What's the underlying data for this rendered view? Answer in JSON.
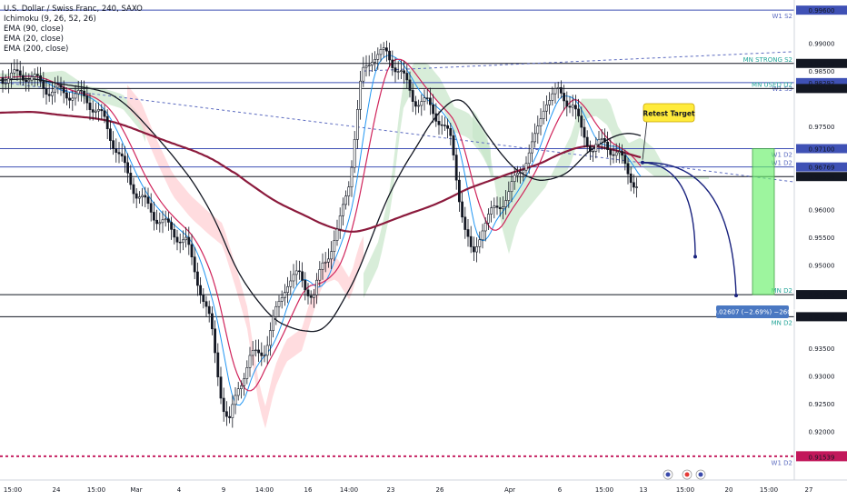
{
  "legend": {
    "title": "U.S. Dollar / Swiss Franc, 240, SAXO",
    "indicators": [
      "Ichimoku (9, 26, 52, 26)",
      "EMA (90, close)",
      "EMA (20, close)",
      "EMA (200, close)"
    ]
  },
  "callout": {
    "text": "Retest Target",
    "bg": "#ffeb3b"
  },
  "measure": {
    "text": "−0.02607 (−2.69%) −260.7",
    "bg": "#4a78c2"
  },
  "colors": {
    "up": "#ffffff",
    "down": "#131722",
    "ema20": "#d0245b",
    "ema90": "#131722",
    "ema200": "#8b1a3c",
    "tenkan": "#2196f3",
    "kijun": "#c2185b",
    "cloud_green": "#c8e6c9",
    "cloud_red": "#ffcdd2",
    "level_blue": "#3f51b5",
    "level_black": "#131722",
    "projection": "#1a237e",
    "target_box": "#69f06a"
  },
  "chart_data": {
    "type": "candlestick",
    "symbol": "USDCHF",
    "timeframe": "240",
    "title": "U.S. Dollar / Swiss Franc, 240, SAXO",
    "ylim": [
      0.9125,
      0.9975
    ],
    "y_ticks": [
      "0.99000",
      "0.98500",
      "0.97500",
      "0.96000",
      "0.95500",
      "0.95000",
      "0.93500",
      "0.93000",
      "0.92500",
      "0.92000"
    ],
    "x_ticks": [
      "15:00",
      "24",
      "15:00",
      "Mar",
      "4",
      "9",
      "14:00",
      "16",
      "14:00",
      "23",
      "26",
      "Apr",
      "6",
      "15:00",
      "13",
      "15:00",
      "20",
      "15:00",
      "27"
    ],
    "price_levels": [
      {
        "value": 0.996,
        "label": "W1 S2",
        "price_label": "0.99600",
        "color": "#3f51b5"
      },
      {
        "value": 0.98638,
        "label": "MN STRONG S2",
        "price_label": "0.98638",
        "color": "#131722"
      },
      {
        "value": 0.98292,
        "label": "W1 S3",
        "price_label": "0.98292",
        "color": "#3f51b5"
      },
      {
        "value": 0.98185,
        "label": "MN USED D2",
        "price_label": "0.98185",
        "color": "#131722"
      },
      {
        "value": 0.971,
        "label": "W1 D2",
        "price_label": "0.97100",
        "color": "#3f51b5"
      },
      {
        "value": 0.96769,
        "label": "W1 D2",
        "price_label": "0.96769",
        "color": "#3f51b5"
      },
      {
        "value": 0.96596,
        "label": "",
        "price_label": "0.96596",
        "color": "#131722"
      },
      {
        "value": 0.94465,
        "label": "MN D2",
        "price_label": "0.94465",
        "color": "#131722"
      },
      {
        "value": 0.94066,
        "label": "MN D2",
        "price_label": "0.94066",
        "color": "#131722"
      },
      {
        "value": 0.91556,
        "label": "",
        "price_label": "0.91556",
        "color": "#c2185b"
      },
      {
        "value": 0.91539,
        "label": "W1 D2",
        "price_label": "0.91539",
        "color": "#c2185b"
      }
    ],
    "series": [
      {
        "name": "EMA (20, close)"
      },
      {
        "name": "EMA (90, close)"
      },
      {
        "name": "EMA (200, close)"
      }
    ],
    "projection": {
      "from": 0.9685,
      "target_1": 0.9515,
      "target_2": 0.9445
    },
    "measure": {
      "change": -0.02607,
      "percent": -2.69,
      "pips": -260.7
    }
  }
}
